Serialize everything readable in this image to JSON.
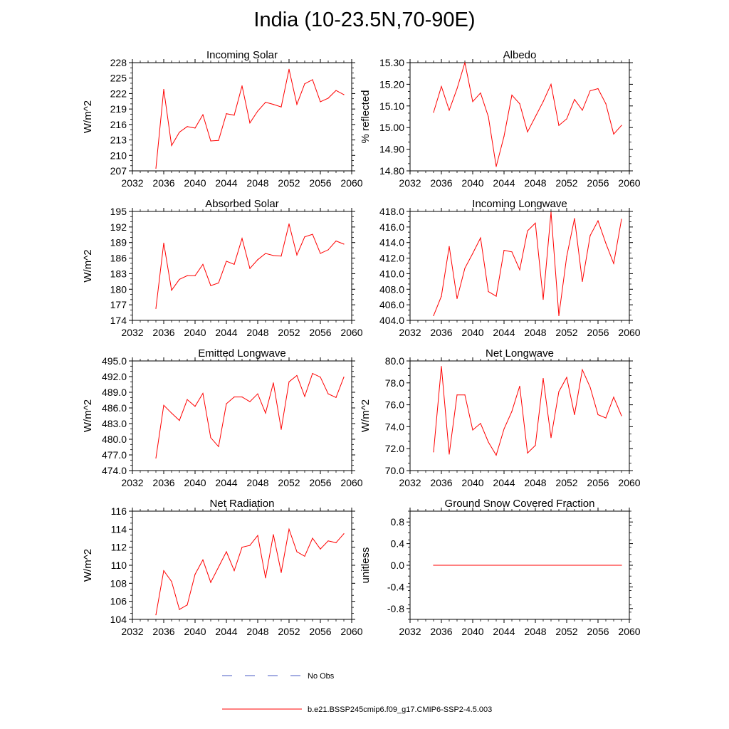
{
  "title": "India (10-23.5N,70-90E)",
  "legend": {
    "obs_label": "No Obs",
    "obs_color": "#4a5bc4",
    "model_label": "b.e21.BSSP245cmip6.f09_g17.CMIP6-SSP2-4.5.003",
    "model_color": "#ff0000"
  },
  "chart_data": [
    {
      "type": "line",
      "title": "Incoming Solar",
      "ylabel": "W/m^2",
      "xlim": [
        2032,
        2060
      ],
      "xticks": [
        "2032",
        "2036",
        "2040",
        "2044",
        "2048",
        "2052",
        "2056",
        "2060"
      ],
      "ylim": [
        207,
        228
      ],
      "yticks": [
        "207",
        "210",
        "213",
        "216",
        "219",
        "222",
        "225",
        "228"
      ],
      "x": [
        2035,
        2036,
        2037,
        2038,
        2039,
        2040,
        2041,
        2042,
        2043,
        2044,
        2045,
        2046,
        2047,
        2048,
        2049,
        2050,
        2051,
        2052,
        2053,
        2054,
        2055,
        2056,
        2057,
        2058,
        2059
      ],
      "values": [
        207.5,
        222.8,
        211.9,
        214.5,
        215.6,
        215.3,
        217.9,
        212.8,
        212.9,
        218.1,
        217.8,
        223.5,
        216.3,
        218.6,
        220.3,
        219.9,
        219.4,
        226.7,
        219.9,
        223.9,
        224.7,
        220.4,
        221.1,
        222.6,
        221.8
      ]
    },
    {
      "type": "line",
      "title": "Albedo",
      "ylabel": "% reflected",
      "xlim": [
        2032,
        2060
      ],
      "xticks": [
        "2032",
        "2036",
        "2040",
        "2044",
        "2048",
        "2052",
        "2056",
        "2060"
      ],
      "ylim": [
        14.8,
        15.3
      ],
      "yticks": [
        "14.80",
        "14.90",
        "15.00",
        "15.10",
        "15.20",
        "15.30"
      ],
      "x": [
        2035,
        2036,
        2037,
        2038,
        2039,
        2040,
        2041,
        2042,
        2043,
        2044,
        2045,
        2046,
        2047,
        2048,
        2049,
        2050,
        2051,
        2052,
        2053,
        2054,
        2055,
        2056,
        2057,
        2058,
        2059
      ],
      "values": [
        15.07,
        15.19,
        15.08,
        15.18,
        15.3,
        15.12,
        15.16,
        15.05,
        14.82,
        14.96,
        15.15,
        15.11,
        14.98,
        15.05,
        15.12,
        15.2,
        15.01,
        15.04,
        15.13,
        15.08,
        15.17,
        15.18,
        15.11,
        14.97,
        15.01
      ]
    },
    {
      "type": "line",
      "title": "Absorbed Solar",
      "ylabel": "W/m^2",
      "xlim": [
        2032,
        2060
      ],
      "xticks": [
        "2032",
        "2036",
        "2040",
        "2044",
        "2048",
        "2052",
        "2056",
        "2060"
      ],
      "ylim": [
        174,
        195
      ],
      "yticks": [
        "174",
        "177",
        "180",
        "183",
        "186",
        "189",
        "192",
        "195"
      ],
      "x": [
        2035,
        2036,
        2037,
        2038,
        2039,
        2040,
        2041,
        2042,
        2043,
        2044,
        2045,
        2046,
        2047,
        2048,
        2049,
        2050,
        2051,
        2052,
        2053,
        2054,
        2055,
        2056,
        2057,
        2058,
        2059
      ],
      "values": [
        176.3,
        188.9,
        179.8,
        181.9,
        182.6,
        182.6,
        184.8,
        180.7,
        181.2,
        185.4,
        184.8,
        189.8,
        184.0,
        185.7,
        186.9,
        186.5,
        186.4,
        192.6,
        186.6,
        190.1,
        190.6,
        186.9,
        187.6,
        189.3,
        188.7
      ]
    },
    {
      "type": "line",
      "title": "Incoming Longwave",
      "ylabel": "",
      "xlim": [
        2032,
        2060
      ],
      "xticks": [
        "2032",
        "2036",
        "2040",
        "2044",
        "2048",
        "2052",
        "2056",
        "2060"
      ],
      "ylim": [
        404,
        418
      ],
      "yticks": [
        "404.0",
        "406.0",
        "408.0",
        "410.0",
        "412.0",
        "414.0",
        "416.0",
        "418.0"
      ],
      "x": [
        2035,
        2036,
        2037,
        2038,
        2039,
        2040,
        2041,
        2042,
        2043,
        2044,
        2045,
        2046,
        2047,
        2048,
        2049,
        2050,
        2051,
        2052,
        2053,
        2054,
        2055,
        2056,
        2057,
        2058,
        2059
      ],
      "values": [
        404.6,
        407.1,
        413.5,
        406.8,
        410.7,
        412.6,
        414.6,
        407.7,
        407.1,
        413.0,
        412.8,
        410.5,
        415.5,
        416.5,
        406.7,
        417.9,
        404.6,
        412.2,
        417.1,
        409.0,
        414.9,
        416.8,
        413.9,
        411.3,
        417.0
      ]
    },
    {
      "type": "line",
      "title": "Emitted Longwave",
      "ylabel": "W/m^2",
      "xlim": [
        2032,
        2060
      ],
      "xticks": [
        "2032",
        "2036",
        "2040",
        "2044",
        "2048",
        "2052",
        "2056",
        "2060"
      ],
      "ylim": [
        474,
        495
      ],
      "yticks": [
        "474.0",
        "477.0",
        "480.0",
        "483.0",
        "486.0",
        "489.0",
        "492.0",
        "495.0"
      ],
      "x": [
        2035,
        2036,
        2037,
        2038,
        2039,
        2040,
        2041,
        2042,
        2043,
        2044,
        2045,
        2046,
        2047,
        2048,
        2049,
        2050,
        2051,
        2052,
        2053,
        2054,
        2055,
        2056,
        2057,
        2058,
        2059
      ],
      "values": [
        476.4,
        486.5,
        485.0,
        483.6,
        487.6,
        486.3,
        488.8,
        480.3,
        478.6,
        486.8,
        488.1,
        488.1,
        487.2,
        488.7,
        485.0,
        490.8,
        481.9,
        491.0,
        492.2,
        488.2,
        492.6,
        491.9,
        488.7,
        488.0,
        491.9
      ]
    },
    {
      "type": "line",
      "title": "Net Longwave",
      "ylabel": "W/m^2",
      "xlim": [
        2032,
        2060
      ],
      "xticks": [
        "2032",
        "2036",
        "2040",
        "2044",
        "2048",
        "2052",
        "2056",
        "2060"
      ],
      "ylim": [
        70,
        80
      ],
      "yticks": [
        "70.0",
        "72.0",
        "74.0",
        "76.0",
        "78.0",
        "80.0"
      ],
      "x": [
        2035,
        2036,
        2037,
        2038,
        2039,
        2040,
        2041,
        2042,
        2043,
        2044,
        2045,
        2046,
        2047,
        2048,
        2049,
        2050,
        2051,
        2052,
        2053,
        2054,
        2055,
        2056,
        2057,
        2058,
        2059
      ],
      "values": [
        71.7,
        79.5,
        71.5,
        76.9,
        76.9,
        73.7,
        74.3,
        72.6,
        71.4,
        73.8,
        75.4,
        77.7,
        71.6,
        72.3,
        78.4,
        73.0,
        77.2,
        78.5,
        75.1,
        79.2,
        77.6,
        75.1,
        74.8,
        76.7,
        75.0
      ]
    },
    {
      "type": "line",
      "title": "Net Radiation",
      "ylabel": "W/m^2",
      "xlim": [
        2032,
        2060
      ],
      "xticks": [
        "2032",
        "2036",
        "2040",
        "2044",
        "2048",
        "2052",
        "2056",
        "2060"
      ],
      "ylim": [
        104,
        116
      ],
      "yticks": [
        "104",
        "106",
        "108",
        "110",
        "112",
        "114",
        "116"
      ],
      "x": [
        2035,
        2036,
        2037,
        2038,
        2039,
        2040,
        2041,
        2042,
        2043,
        2044,
        2045,
        2046,
        2047,
        2048,
        2049,
        2050,
        2051,
        2052,
        2053,
        2054,
        2055,
        2056,
        2057,
        2058,
        2059
      ],
      "values": [
        104.5,
        109.4,
        108.2,
        105.1,
        105.6,
        109.0,
        110.6,
        108.1,
        109.8,
        111.5,
        109.4,
        112.0,
        112.2,
        113.3,
        108.6,
        113.4,
        109.2,
        114.0,
        111.5,
        111.0,
        113.0,
        111.8,
        112.7,
        112.5,
        113.5
      ]
    },
    {
      "type": "line",
      "title": "Ground Snow Covered Fraction",
      "ylabel": "unitless",
      "xlim": [
        2032,
        2060
      ],
      "xticks": [
        "2032",
        "2036",
        "2040",
        "2044",
        "2048",
        "2052",
        "2056",
        "2060"
      ],
      "ylim": [
        -1,
        1
      ],
      "yticks": [
        "-0.8",
        "-0.4",
        "0.0",
        "0.4",
        "0.8"
      ],
      "x": [
        2035,
        2059
      ],
      "values": [
        0,
        0
      ]
    }
  ]
}
